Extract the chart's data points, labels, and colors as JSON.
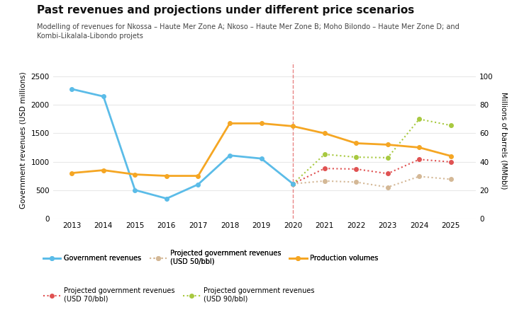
{
  "title": "Past revenues and projections under different price scenarios",
  "subtitle": "Modelling of revenues for Nkossa – Haute Mer Zone A; Nkoso – Haute Mer Zone B; Moho Bilondo – Haute Mer Zone D; and\nKombi-Likalala-Libondo projets",
  "ylabel_left": "Government revenues (USD millions)",
  "ylabel_right": "Millions of barrels (MMbbl)",
  "gov_rev_years": [
    2013,
    2014,
    2015,
    2016,
    2017,
    2018,
    2019,
    2020
  ],
  "gov_rev_values": [
    2280,
    2150,
    500,
    350,
    600,
    1110,
    1055,
    610
  ],
  "prod_vol_years": [
    2013,
    2014,
    2015,
    2016,
    2017,
    2018,
    2019,
    2020,
    2021,
    2022,
    2023,
    2024,
    2025
  ],
  "prod_vol_mmbbl": [
    32,
    34,
    31,
    30,
    30,
    67,
    67,
    65,
    60,
    53,
    52,
    50,
    44
  ],
  "proj_50_years": [
    2020,
    2021,
    2022,
    2023,
    2024,
    2025
  ],
  "proj_50_values": [
    610,
    660,
    640,
    550,
    740,
    690
  ],
  "proj_70_years": [
    2020,
    2021,
    2022,
    2023,
    2024,
    2025
  ],
  "proj_70_values": [
    610,
    880,
    870,
    790,
    1040,
    995
  ],
  "proj_90_years": [
    2020,
    2021,
    2022,
    2023,
    2024,
    2025
  ],
  "proj_90_values": [
    610,
    1130,
    1080,
    1070,
    1750,
    1640
  ],
  "color_gov": "#5bbce8",
  "color_prod": "#f5a623",
  "color_50": "#d4b896",
  "color_70": "#e05252",
  "color_90": "#a8c940",
  "vline_x": 2020,
  "ylim_left": [
    0,
    2750
  ],
  "ylim_right": [
    0,
    110
  ],
  "yticks_left": [
    0,
    500,
    1000,
    1500,
    2000,
    2500
  ],
  "yticks_right": [
    0,
    20,
    40,
    60,
    80,
    100
  ],
  "years": [
    2013,
    2014,
    2015,
    2016,
    2017,
    2018,
    2019,
    2020,
    2021,
    2022,
    2023,
    2024,
    2025
  ],
  "xlim": [
    2012.4,
    2025.8
  ],
  "background_color": "#ffffff",
  "panel_background": "#ffffff",
  "grid_color": "#e8e8e8"
}
